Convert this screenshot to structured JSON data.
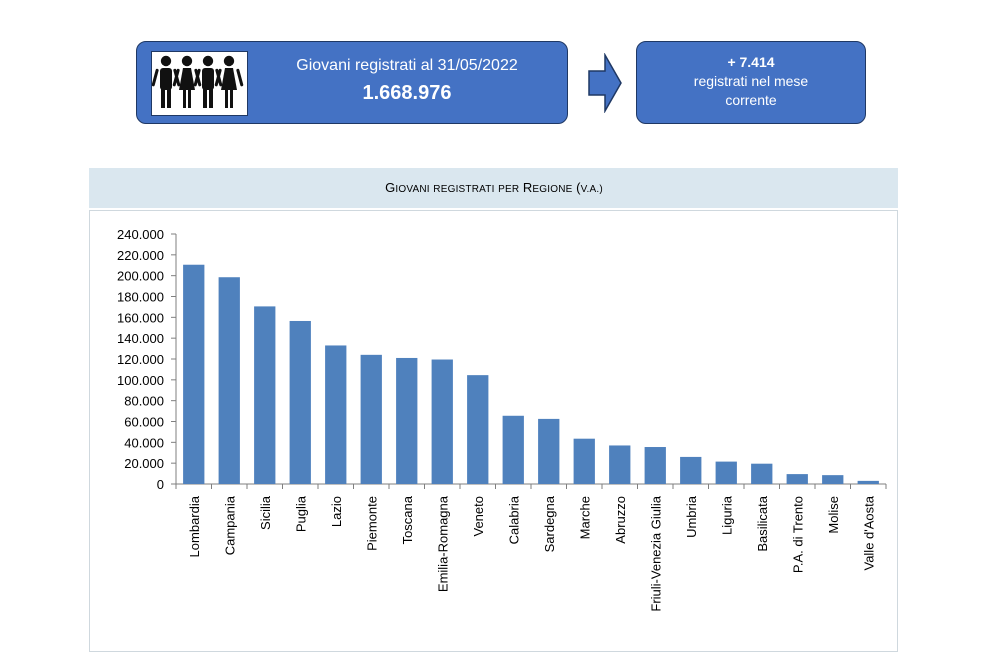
{
  "kpi": {
    "label": "Giovani registrati al 31/05/2022",
    "value": "1.668.976"
  },
  "delta": {
    "value": "+ 7.414",
    "text": "registrati nel mese corrente"
  },
  "icons": {
    "people": "people-icon",
    "arrow": "right-arrow-icon"
  },
  "colors": {
    "box_fill": "#4472c4",
    "box_border": "#1f3864",
    "bar": "#4f81bd",
    "header_fill": "#dae7ef"
  },
  "chart_data": {
    "type": "bar",
    "title": "Giovani registrati per Regione (v.a.)",
    "categories": [
      "Lombardia",
      "Campania",
      "Sicilia",
      "Puglia",
      "Lazio",
      "Piemonte",
      "Toscana",
      "Emilia-Romagna",
      "Veneto",
      "Calabria",
      "Sardegna",
      "Marche",
      "Abruzzo",
      "Friuli-Venezia Giulia",
      "Umbria",
      "Liguria",
      "Basilicata",
      "P.A. di Trento",
      "Molise",
      "Valle d'Aosta"
    ],
    "values": [
      210500,
      198500,
      170500,
      156500,
      133000,
      124000,
      121000,
      119500,
      104500,
      65500,
      62500,
      43500,
      37000,
      35500,
      26000,
      21500,
      19500,
      9500,
      8500,
      3000
    ],
    "ylim": [
      0,
      240000
    ],
    "yticks": [
      "0",
      "20.000",
      "40.000",
      "60.000",
      "80.000",
      "100.000",
      "120.000",
      "140.000",
      "160.000",
      "180.000",
      "200.000",
      "220.000",
      "240.000"
    ],
    "grid": false,
    "legend": "none"
  }
}
